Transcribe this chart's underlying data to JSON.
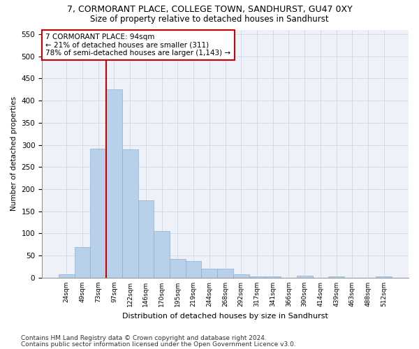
{
  "title_line1": "7, CORMORANT PLACE, COLLEGE TOWN, SANDHURST, GU47 0XY",
  "title_line2": "Size of property relative to detached houses in Sandhurst",
  "xlabel": "Distribution of detached houses by size in Sandhurst",
  "ylabel": "Number of detached properties",
  "bar_labels": [
    "24sqm",
    "49sqm",
    "73sqm",
    "97sqm",
    "122sqm",
    "146sqm",
    "170sqm",
    "195sqm",
    "219sqm",
    "244sqm",
    "268sqm",
    "292sqm",
    "317sqm",
    "341sqm",
    "366sqm",
    "390sqm",
    "414sqm",
    "439sqm",
    "463sqm",
    "488sqm",
    "512sqm"
  ],
  "bar_values": [
    8,
    70,
    292,
    425,
    290,
    175,
    105,
    42,
    38,
    20,
    20,
    7,
    3,
    3,
    0,
    5,
    0,
    3,
    0,
    0,
    3
  ],
  "bar_color": "#b8d0ea",
  "bar_edge_color": "#8ab0d4",
  "vline_color": "#cc0000",
  "annotation_text": "7 CORMORANT PLACE: 94sqm\n← 21% of detached houses are smaller (311)\n78% of semi-detached houses are larger (1,143) →",
  "annotation_box_color": "#ffffff",
  "annotation_box_edge_color": "#cc0000",
  "ylim": [
    0,
    560
  ],
  "yticks": [
    0,
    50,
    100,
    150,
    200,
    250,
    300,
    350,
    400,
    450,
    500,
    550
  ],
  "footnote_line1": "Contains HM Land Registry data © Crown copyright and database right 2024.",
  "footnote_line2": "Contains public sector information licensed under the Open Government Licence v3.0.",
  "plot_bg_color": "#eef2f8",
  "grid_color": "#c8d4e4",
  "title_fontsize": 9,
  "subtitle_fontsize": 8.5,
  "annotation_fontsize": 7.5,
  "footnote_fontsize": 6.5,
  "ylabel_fontsize": 7.5,
  "xlabel_fontsize": 8
}
